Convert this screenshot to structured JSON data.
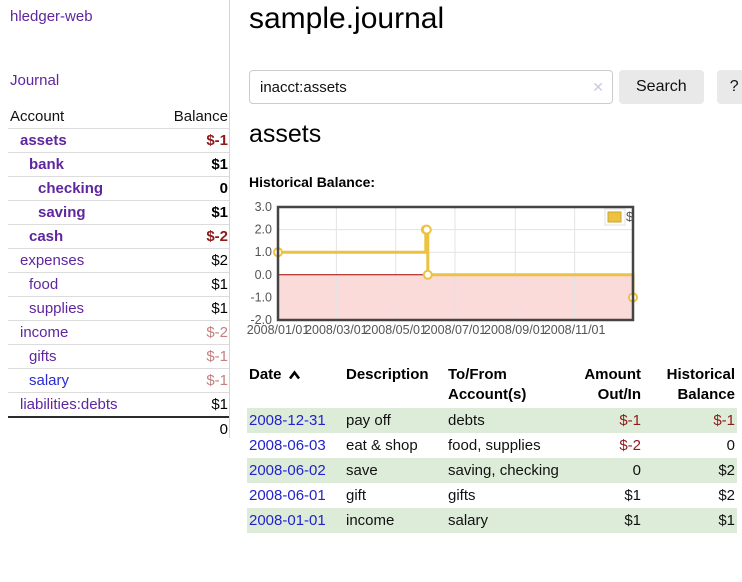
{
  "sidebar": {
    "brand": "hledger-web",
    "journal_link": "Journal",
    "accounts": {
      "col_account": "Account",
      "col_balance": "Balance",
      "rows": [
        {
          "name": "assets",
          "balance": "$-1"
        },
        {
          "name": "bank",
          "balance": "$1"
        },
        {
          "name": "checking",
          "balance": "0"
        },
        {
          "name": "saving",
          "balance": "$1"
        },
        {
          "name": "cash",
          "balance": "$-2"
        },
        {
          "name": "expenses",
          "balance": "$2"
        },
        {
          "name": "food",
          "balance": "$1"
        },
        {
          "name": "supplies",
          "balance": "$1"
        },
        {
          "name": "income",
          "balance": "$-2"
        },
        {
          "name": "gifts",
          "balance": "$-1"
        },
        {
          "name": "salary",
          "balance": "$-1"
        },
        {
          "name": "liabilities:debts",
          "balance": "$1"
        }
      ],
      "total": "0"
    }
  },
  "main": {
    "title": "sample.journal",
    "search": {
      "value": "inacct:assets",
      "clear_label": "✕",
      "search_button": "Search",
      "help_button": "?"
    },
    "account_heading": "assets",
    "chart_heading": "Historical Balance:"
  },
  "chart_data": {
    "type": "line",
    "title": "Historical Balance",
    "step": true,
    "series": [
      {
        "name": "$",
        "color": "#edc240",
        "points": [
          [
            "2008-01-01",
            1
          ],
          [
            "2008-06-01",
            2
          ],
          [
            "2008-06-02",
            2
          ],
          [
            "2008-06-03",
            0
          ],
          [
            "2008-12-31",
            -1
          ]
        ]
      }
    ],
    "xlim": [
      "2008-01-01",
      "2008-12-31"
    ],
    "ylim": [
      -2,
      3
    ],
    "x_ticks": [
      "2008/01/01",
      "2008/03/01",
      "2008/05/01",
      "2008/07/01",
      "2008/09/01",
      "2008/11/01"
    ],
    "y_ticks": [
      3.0,
      2.0,
      1.0,
      0.0,
      -1.0,
      -2.0
    ],
    "legend": {
      "label": "$",
      "position": "top-right"
    },
    "grid": true,
    "negative_region_color": "#fbdada",
    "zero_line_color": "#a40000",
    "tick_label_color": "#545454",
    "border_color": "#444444"
  },
  "register": {
    "headers": {
      "date": "Date",
      "description": "Description",
      "accounts_l1": "To/From",
      "accounts_l2": "Account(s)",
      "amount_l1": "Amount",
      "amount_l2": "Out/In",
      "balance_l1": "Historical",
      "balance_l2": "Balance"
    },
    "rows": [
      {
        "date": "2008-12-31",
        "description": "pay off",
        "accounts": "debts",
        "amount": "$-1",
        "balance": "$-1"
      },
      {
        "date": "2008-06-03",
        "description": "eat & shop",
        "accounts": "food, supplies",
        "amount": "$-2",
        "balance": "0"
      },
      {
        "date": "2008-06-02",
        "description": "save",
        "accounts": "saving, checking",
        "amount": "0",
        "balance": "$2"
      },
      {
        "date": "2008-06-01",
        "description": "gift",
        "accounts": "gifts",
        "amount": "$1",
        "balance": "$2"
      },
      {
        "date": "2008-01-01",
        "description": "income",
        "accounts": "salary",
        "amount": "$1",
        "balance": "$1"
      }
    ]
  },
  "colors": {
    "accent_purple": "#5f269f",
    "link_blue": "#2222cc",
    "negative_dark": "#8e1a1a",
    "negative_soft": "#c48080",
    "row_green": "#ddecd9",
    "chart_line": "#edc240"
  }
}
